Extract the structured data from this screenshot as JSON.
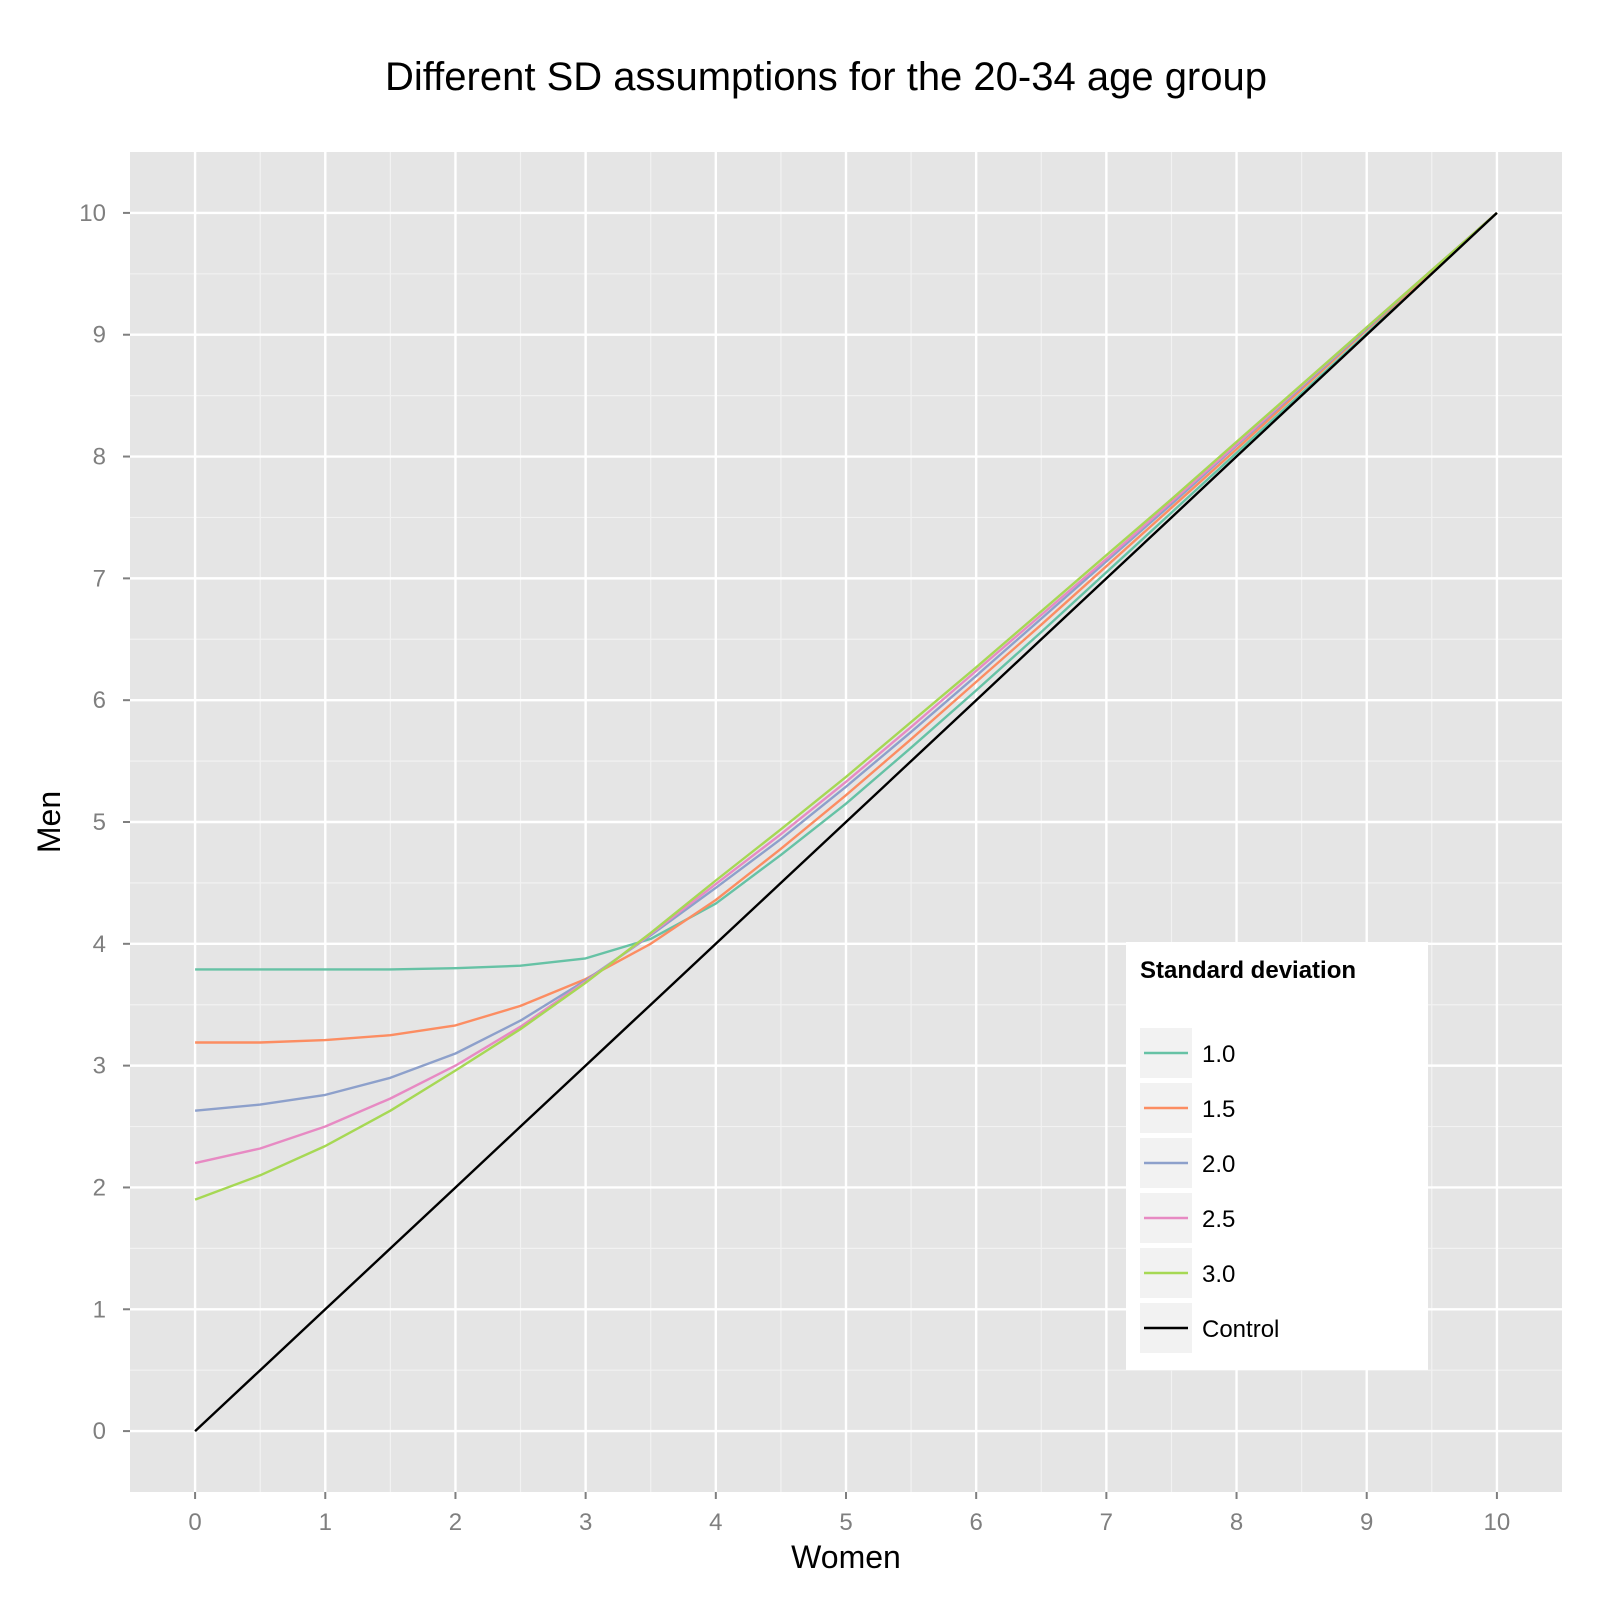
{
  "chart_data": {
    "type": "line",
    "title": "Different SD assumptions for the 20-34 age group",
    "xlabel": "Women",
    "ylabel": "Men",
    "xlim": [
      -0.5,
      10.5
    ],
    "ylim": [
      -0.5,
      10.5
    ],
    "x_ticks": [
      "0",
      "1",
      "2",
      "3",
      "4",
      "5",
      "6",
      "7",
      "8",
      "9",
      "10"
    ],
    "y_ticks": [
      "0",
      "1",
      "2",
      "3",
      "4",
      "5",
      "6",
      "7",
      "8",
      "9",
      "10"
    ],
    "grid": true,
    "legend": {
      "title": "Standard deviation",
      "position": "bottom-right-inside"
    },
    "x": [
      0,
      0.5,
      1,
      1.5,
      2,
      2.5,
      3,
      3.5,
      4,
      4.5,
      5,
      5.5,
      6,
      6.5,
      7,
      7.5,
      8,
      8.5,
      9,
      9.5,
      10
    ],
    "series": [
      {
        "name": "1.0",
        "color": "#66c2a5",
        "values": [
          3.79,
          3.79,
          3.79,
          3.79,
          3.8,
          3.82,
          3.88,
          4.04,
          4.33,
          4.73,
          5.15,
          5.61,
          6.08,
          6.56,
          7.05,
          7.54,
          8.03,
          8.52,
          9.01,
          9.51,
          10.0
        ]
      },
      {
        "name": "1.5",
        "color": "#fc8d62",
        "values": [
          3.19,
          3.19,
          3.21,
          3.25,
          3.33,
          3.49,
          3.71,
          4.0,
          4.36,
          4.78,
          5.22,
          5.68,
          6.15,
          6.62,
          7.1,
          7.58,
          8.06,
          8.55,
          9.04,
          9.52,
          10.0
        ]
      },
      {
        "name": "2.0",
        "color": "#8da0cb",
        "values": [
          2.63,
          2.68,
          2.76,
          2.9,
          3.1,
          3.37,
          3.7,
          4.07,
          4.46,
          4.86,
          5.29,
          5.74,
          6.2,
          6.67,
          7.14,
          7.61,
          8.09,
          8.57,
          9.05,
          9.53,
          10.0
        ]
      },
      {
        "name": "2.5",
        "color": "#e78ac3",
        "values": [
          2.2,
          2.32,
          2.5,
          2.73,
          3.0,
          3.32,
          3.69,
          4.08,
          4.49,
          4.9,
          5.33,
          5.78,
          6.24,
          6.7,
          7.16,
          7.63,
          8.1,
          8.58,
          9.06,
          9.53,
          10.0
        ]
      },
      {
        "name": "3.0",
        "color": "#a6d854",
        "values": [
          1.9,
          2.1,
          2.34,
          2.63,
          2.96,
          3.3,
          3.68,
          4.09,
          4.52,
          4.94,
          5.37,
          5.82,
          6.27,
          6.73,
          7.19,
          7.65,
          8.12,
          8.59,
          9.06,
          9.53,
          10.0
        ]
      },
      {
        "name": "Control",
        "color": "#000000",
        "values": [
          0,
          0.5,
          1,
          1.5,
          2,
          2.5,
          3,
          3.5,
          4,
          4.5,
          5,
          5.5,
          6,
          6.5,
          7,
          7.5,
          8,
          8.5,
          9,
          9.5,
          10
        ]
      }
    ],
    "colors": {
      "panel_background": "#e5e5e5",
      "grid_major": "#ffffff",
      "grid_minor": "#f2f2f2",
      "legend_key_background": "#f2f2f2"
    }
  }
}
